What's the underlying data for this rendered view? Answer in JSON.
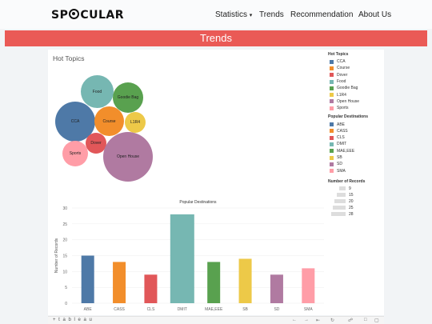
{
  "nav": {
    "logo_left": "SP",
    "logo_right": "CULAR",
    "links": [
      "Statistics",
      "Trends",
      "Recommendation",
      "About Us"
    ],
    "dropdown_caret": "▾"
  },
  "banner": {
    "title": "Trends"
  },
  "hot_topics": {
    "title": "Hot Topics",
    "bubbles": [
      {
        "label": "CCA",
        "color": "#4e79a7"
      },
      {
        "label": "Course",
        "color": "#f28e2b"
      },
      {
        "label": "Dover",
        "color": "#e15759"
      },
      {
        "label": "Food",
        "color": "#76b7b2"
      },
      {
        "label": "Goodie Bag",
        "color": "#59a14f"
      },
      {
        "label": "L1R4",
        "color": "#edc948"
      },
      {
        "label": "Open House",
        "color": "#b07aa1"
      },
      {
        "label": "Sports",
        "color": "#ff9da7"
      }
    ]
  },
  "legend": {
    "hot_title": "Hot Topics",
    "hot_items": [
      {
        "label": "CCA",
        "color": "#4e79a7"
      },
      {
        "label": "Course",
        "color": "#f28e2b"
      },
      {
        "label": "Dover",
        "color": "#e15759"
      },
      {
        "label": "Food",
        "color": "#76b7b2"
      },
      {
        "label": "Goodie Bag",
        "color": "#59a14f"
      },
      {
        "label": "L1R4",
        "color": "#edc948"
      },
      {
        "label": "Open House",
        "color": "#b07aa1"
      },
      {
        "label": "Sports",
        "color": "#ff9da7"
      }
    ],
    "dest_title": "Popular Destinations",
    "dest_items": [
      {
        "label": "ABE",
        "color": "#4e79a7"
      },
      {
        "label": "CASS",
        "color": "#f28e2b"
      },
      {
        "label": "CLS",
        "color": "#e15759"
      },
      {
        "label": "DMIT",
        "color": "#76b7b2"
      },
      {
        "label": "MAE,EEE",
        "color": "#59a14f"
      },
      {
        "label": "SB",
        "color": "#edc948"
      },
      {
        "label": "SD",
        "color": "#b07aa1"
      },
      {
        "label": "SMA",
        "color": "#ff9da7"
      }
    ],
    "records_title": "Number of Records",
    "records_items": [
      "9",
      "15",
      "20",
      "25",
      "28"
    ]
  },
  "chart_data": {
    "type": "bar",
    "title": "Popular Destinations",
    "xlabel": "",
    "ylabel": "Number of Records",
    "categories": [
      "ABE",
      "CASS",
      "CLS",
      "DMIT",
      "MAE,EEE",
      "SB",
      "SD",
      "SMA"
    ],
    "values": [
      15,
      13,
      9,
      28,
      13,
      14,
      9,
      11
    ],
    "colors": [
      "#4e79a7",
      "#f28e2b",
      "#e15759",
      "#76b7b2",
      "#59a14f",
      "#edc948",
      "#b07aa1",
      "#ff9da7"
    ],
    "yticks": [
      0,
      5,
      10,
      15,
      20,
      25,
      30
    ],
    "ylim": [
      0,
      30
    ],
    "grid": true
  },
  "footer": {
    "brand": "+ t a b l e a u"
  }
}
